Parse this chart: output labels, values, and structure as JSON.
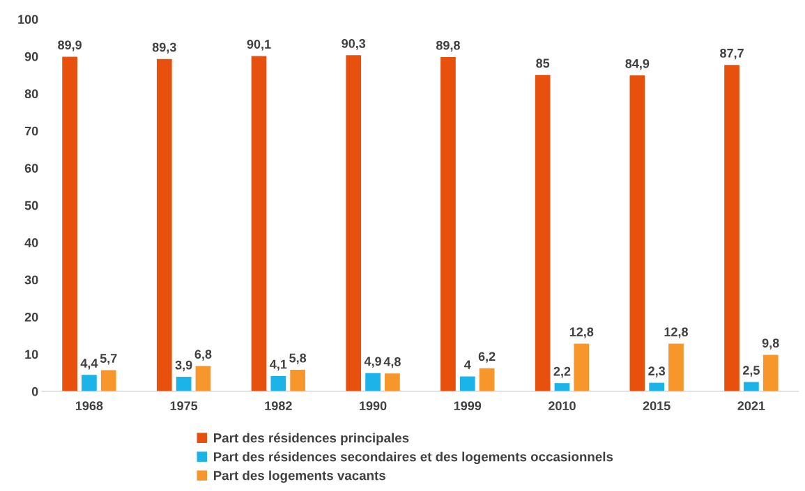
{
  "chart_data": {
    "type": "bar",
    "categories": [
      "1968",
      "1975",
      "1982",
      "1990",
      "1999",
      "2010",
      "2015",
      "2021"
    ],
    "series": [
      {
        "name": "Part des résidences principales",
        "color": "#e8500e",
        "values": [
          89.9,
          89.3,
          90.1,
          90.3,
          89.8,
          85,
          84.9,
          87.7
        ],
        "value_labels": [
          "89,9",
          "89,3",
          "90,1",
          "90,3",
          "89,8",
          "85",
          "84,9",
          "87,7"
        ]
      },
      {
        "name": "Part des résidences secondaires et des logements occasionnels",
        "color": "#1cb4e8",
        "values": [
          4.4,
          3.9,
          4.1,
          4.9,
          4,
          2.2,
          2.3,
          2.5
        ],
        "value_labels": [
          "4,4",
          "3,9",
          "4,1",
          "4,9",
          "4",
          "2,2",
          "2,3",
          "2,5"
        ]
      },
      {
        "name": "Part des logements vacants",
        "color": "#f7962a",
        "values": [
          5.7,
          6.8,
          5.8,
          4.8,
          6.2,
          12.8,
          12.8,
          9.8
        ],
        "value_labels": [
          "5,7",
          "6,8",
          "5,8",
          "4,8",
          "6,2",
          "12,8",
          "12,8",
          "9,8"
        ]
      }
    ],
    "ylim": [
      0,
      100
    ],
    "yticks": [
      0,
      10,
      20,
      30,
      40,
      50,
      60,
      70,
      80,
      90,
      100
    ],
    "grid": false,
    "legend": "bottom"
  }
}
